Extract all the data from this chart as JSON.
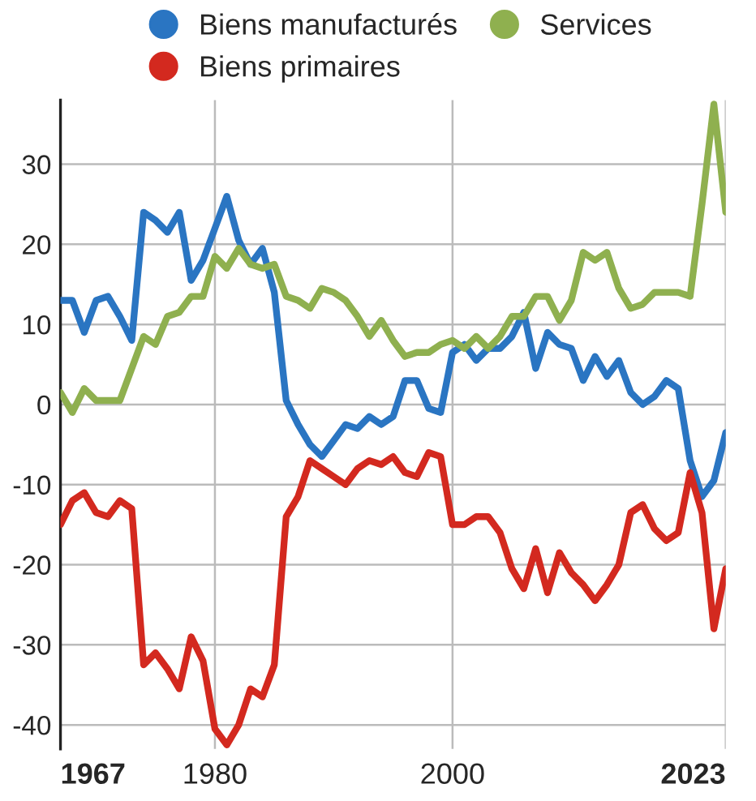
{
  "chart_data": {
    "type": "line",
    "x": [
      1967,
      1968,
      1969,
      1970,
      1971,
      1972,
      1973,
      1974,
      1975,
      1976,
      1977,
      1978,
      1979,
      1980,
      1981,
      1982,
      1983,
      1984,
      1985,
      1986,
      1987,
      1988,
      1989,
      1990,
      1991,
      1992,
      1993,
      1994,
      1995,
      1996,
      1997,
      1998,
      1999,
      2000,
      2001,
      2002,
      2003,
      2004,
      2005,
      2006,
      2007,
      2008,
      2009,
      2010,
      2011,
      2012,
      2013,
      2014,
      2015,
      2016,
      2017,
      2018,
      2019,
      2020,
      2021,
      2022,
      2023
    ],
    "series": [
      {
        "name": "Biens manufacturés",
        "color": "#2a75c2",
        "values": [
          13,
          13,
          9,
          13,
          13.5,
          11,
          8,
          24,
          23,
          21.5,
          24,
          15.5,
          18,
          22,
          26,
          20.5,
          17.5,
          19.5,
          14,
          0.5,
          -2.5,
          -5,
          -6.5,
          -4.5,
          -2.5,
          -3,
          -1.5,
          -2.5,
          -1.5,
          3,
          3,
          -0.5,
          -1,
          6.5,
          7.5,
          5.5,
          7,
          7,
          8.5,
          11.5,
          4.5,
          9,
          7.5,
          7,
          3,
          6,
          3.5,
          5.5,
          1.5,
          0,
          1,
          3,
          2,
          -7,
          -11.5,
          -9.5,
          -3.5
        ]
      },
      {
        "name": "Biens primaires",
        "color": "#d3291f",
        "values": [
          -15,
          -12,
          -11,
          -13.5,
          -14,
          -12,
          -13,
          -32.5,
          -31,
          -33,
          -35.5,
          -29,
          -32,
          -40.5,
          -42.5,
          -40,
          -35.5,
          -36.5,
          -32.5,
          -14,
          -11.5,
          -7,
          -8,
          -9,
          -10,
          -8,
          -7,
          -7.5,
          -6.5,
          -8.5,
          -9,
          -6,
          -6.5,
          -15,
          -15,
          -14,
          -14,
          -16,
          -20.5,
          -23,
          -18,
          -23.5,
          -18.5,
          -21,
          -22.5,
          -24.5,
          -22.5,
          -20,
          -13.5,
          -12.5,
          -15.5,
          -17,
          -16,
          -8.5,
          -13.5,
          -28,
          -20.5
        ]
      },
      {
        "name": "Services",
        "color": "#8fb04f",
        "values": [
          1.5,
          -1,
          2,
          0.5,
          0.5,
          0.5,
          4.5,
          8.5,
          7.5,
          11,
          11.5,
          13.5,
          13.5,
          18.5,
          17,
          19.5,
          17.5,
          17,
          17.5,
          13.5,
          13,
          12,
          14.5,
          14,
          13,
          11,
          8.5,
          10.5,
          8,
          6,
          6.5,
          6.5,
          7.5,
          8,
          7,
          8.5,
          7,
          8.5,
          11,
          11,
          13.5,
          13.5,
          10.5,
          13,
          19,
          18,
          19,
          14.5,
          12,
          12.5,
          14,
          14,
          14,
          13.5,
          25,
          37.5,
          24
        ]
      }
    ],
    "xlim": [
      1967,
      2023
    ],
    "xticks": [
      1967,
      1980,
      2000,
      2023
    ],
    "ylim": [
      -43,
      38
    ],
    "yticks": [
      -40,
      -30,
      -20,
      -10,
      0,
      10,
      20,
      30
    ],
    "grid": true,
    "legend": "top",
    "marker": "none",
    "line_style": "solid"
  }
}
